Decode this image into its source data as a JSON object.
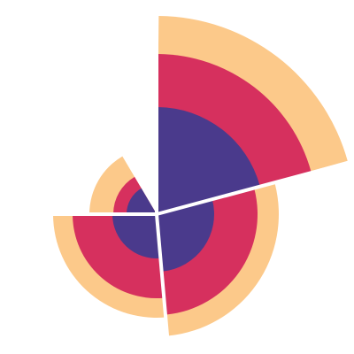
{
  "chart_data": {
    "type": "polar-area-stacked",
    "title": "",
    "categories": [
      "",
      "",
      "",
      ""
    ],
    "series": [
      {
        "values": [
          121,
          65,
          50,
          34
        ]
      },
      {
        "values": [
          181,
          114,
          95,
          49
        ]
      },
      {
        "values": [
          224,
          138,
          117,
          76
        ]
      }
    ],
    "radial_max": 224,
    "start_angle_deg": 0,
    "sweeps_deg": [
      75,
      100,
      95,
      60
    ],
    "grid": false,
    "legend": "none"
  },
  "colors": {
    "inner": "#4a3a8c",
    "middle": "#d6305e",
    "outer": "#fcc98a",
    "separator": "#ffffff",
    "background": "#ffffff"
  }
}
